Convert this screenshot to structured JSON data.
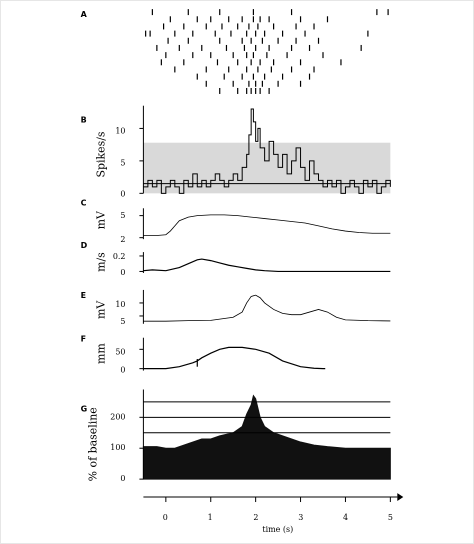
{
  "chart_data": [
    {
      "panel": "A",
      "type": "raster",
      "trials": [
        [
          -0.3,
          0.5,
          1.2,
          1.95,
          2.8,
          4.7,
          4.95
        ],
        [
          0.1,
          0.7,
          1.0,
          1.4,
          1.7,
          1.95,
          2.1,
          2.3,
          3.0,
          3.6
        ],
        [
          -0.05,
          0.4,
          0.9,
          1.25,
          1.6,
          1.85,
          2.05,
          2.4,
          2.9,
          3.3
        ],
        [
          -0.45,
          -0.35,
          0.2,
          0.6,
          1.1,
          1.45,
          1.8,
          2.0,
          2.2,
          2.6,
          3.1,
          4.5
        ],
        [
          0.05,
          0.5,
          1.2,
          1.7,
          1.9,
          2.15,
          2.5,
          2.9,
          3.4
        ],
        [
          -0.2,
          0.3,
          0.8,
          1.35,
          1.75,
          2.0,
          2.3,
          2.8,
          3.2,
          4.35
        ],
        [
          0.0,
          0.6,
          1.0,
          1.5,
          1.8,
          1.95,
          2.25,
          2.7,
          3.5
        ],
        [
          -0.1,
          0.4,
          1.15,
          1.6,
          1.9,
          2.1,
          2.4,
          3.0,
          3.9
        ],
        [
          0.2,
          0.9,
          1.4,
          1.8,
          2.05,
          2.35,
          2.8,
          3.3
        ],
        [
          0.7,
          1.3,
          1.7,
          1.95,
          2.2,
          2.6,
          3.2
        ],
        [
          0.9,
          1.5,
          1.85,
          2.0,
          2.15,
          2.5,
          3.0
        ],
        [
          1.2,
          1.6,
          1.8,
          1.9,
          2.0,
          2.1,
          2.3
        ]
      ],
      "xlim": [
        -0.5,
        5
      ]
    },
    {
      "panel": "B",
      "type": "line",
      "ylabel": "Spikes/s",
      "yticks": [
        0,
        5,
        10
      ],
      "ylim": [
        0,
        13.5
      ],
      "band": [
        0,
        7.8
      ],
      "hline": 1.5,
      "x": [
        -0.5,
        -0.4,
        -0.3,
        -0.2,
        -0.1,
        0,
        0.1,
        0.2,
        0.3,
        0.4,
        0.5,
        0.6,
        0.7,
        0.8,
        0.9,
        1,
        1.1,
        1.2,
        1.3,
        1.4,
        1.5,
        1.6,
        1.7,
        1.8,
        1.85,
        1.9,
        1.95,
        2,
        2.05,
        2.1,
        2.2,
        2.3,
        2.4,
        2.5,
        2.6,
        2.7,
        2.8,
        2.9,
        3,
        3.1,
        3.2,
        3.3,
        3.4,
        3.5,
        3.6,
        3.7,
        3.8,
        3.9,
        4,
        4.1,
        4.2,
        4.3,
        4.4,
        4.5,
        4.6,
        4.7,
        4.8,
        4.9,
        5
      ],
      "y": [
        1,
        2,
        1,
        2,
        0,
        1,
        2,
        1,
        0,
        2,
        1,
        3,
        1,
        2,
        1,
        2,
        3,
        2,
        1,
        2,
        3,
        2,
        4,
        6,
        9,
        13,
        11,
        8,
        10,
        7,
        5,
        8,
        6,
        4,
        6,
        3,
        5,
        7,
        4,
        2,
        5,
        3,
        2,
        1,
        2,
        1,
        2,
        0,
        1,
        2,
        1,
        0,
        2,
        1,
        2,
        0,
        1,
        2,
        1
      ]
    },
    {
      "panel": "C",
      "type": "line",
      "ylabel": "mV",
      "yticks": [
        2,
        5
      ],
      "ylim": [
        1.8,
        6
      ],
      "x": [
        -0.5,
        -0.2,
        0,
        0.1,
        0.2,
        0.3,
        0.5,
        0.7,
        1,
        1.3,
        1.6,
        1.9,
        2.2,
        2.5,
        2.8,
        3.1,
        3.4,
        3.7,
        4,
        4.3,
        4.6,
        5
      ],
      "y": [
        2.3,
        2.3,
        2.4,
        2.9,
        3.6,
        4.3,
        4.8,
        5.0,
        5.1,
        5.1,
        5.0,
        4.8,
        4.6,
        4.4,
        4.2,
        4.0,
        3.6,
        3.2,
        2.9,
        2.7,
        2.6,
        2.6
      ]
    },
    {
      "panel": "D",
      "type": "line",
      "ylabel": "m/s",
      "yticks": [
        0,
        0.2
      ],
      "ylim": [
        -0.02,
        0.25
      ],
      "x": [
        -0.5,
        -0.3,
        0,
        0.3,
        0.5,
        0.7,
        0.8,
        1,
        1.2,
        1.4,
        1.6,
        1.8,
        2,
        2.2,
        2.5,
        3,
        4,
        5
      ],
      "y": [
        0.01,
        0.02,
        0.01,
        0.05,
        0.1,
        0.15,
        0.16,
        0.14,
        0.11,
        0.08,
        0.06,
        0.04,
        0.02,
        0.01,
        0,
        0,
        0,
        0
      ]
    },
    {
      "panel": "E",
      "type": "line",
      "ylabel": "mV",
      "yticks": [
        5,
        10
      ],
      "ylim": [
        2,
        15
      ],
      "x": [
        -0.5,
        0,
        0.5,
        1,
        1.5,
        1.7,
        1.8,
        1.9,
        2,
        2.1,
        2.2,
        2.4,
        2.6,
        2.8,
        3,
        3.2,
        3.4,
        3.6,
        3.8,
        4,
        4.5,
        5
      ],
      "y": [
        3,
        3,
        3.2,
        3.3,
        4.5,
        6.5,
        10,
        12.5,
        13,
        12,
        10,
        7.5,
        6,
        5.5,
        5.5,
        6.5,
        7.5,
        6.5,
        4.5,
        3.5,
        3.2,
        3.1
      ]
    },
    {
      "panel": "F",
      "type": "line",
      "ylabel": "mm",
      "yticks": [
        0,
        50
      ],
      "ylim": [
        -5,
        80
      ],
      "x": [
        -0.5,
        0,
        0.3,
        0.6,
        0.7,
        0.8,
        1,
        1.2,
        1.4,
        1.7,
        2,
        2.3,
        2.6,
        3,
        3.3,
        3.5,
        3.55
      ],
      "y": [
        0,
        0,
        5,
        15,
        20,
        28,
        40,
        50,
        55,
        55,
        50,
        40,
        20,
        5,
        1,
        0,
        0
      ]
    },
    {
      "panel": "G",
      "type": "area",
      "ylabel": "% of baseline",
      "yticks": [
        0,
        100,
        200
      ],
      "ylim": [
        0,
        290
      ],
      "hlines": [
        150,
        200,
        250
      ],
      "x": [
        -0.5,
        -0.2,
        0,
        0.2,
        0.5,
        0.8,
        1,
        1.2,
        1.5,
        1.7,
        1.8,
        1.9,
        1.95,
        2,
        2.05,
        2.1,
        2.2,
        2.4,
        2.6,
        2.8,
        3,
        3.3,
        3.6,
        4,
        4.5,
        5
      ],
      "y": [
        105,
        105,
        100,
        100,
        115,
        130,
        130,
        140,
        150,
        170,
        210,
        240,
        270,
        260,
        230,
        200,
        170,
        150,
        140,
        130,
        120,
        110,
        105,
        100,
        100,
        100
      ]
    },
    {
      "panel": "time-axis",
      "type": "axis",
      "xlabel": "time (s)",
      "xticks": [
        0,
        1,
        2,
        3,
        4,
        5
      ],
      "xlim": [
        -0.5,
        5
      ]
    }
  ],
  "labels": {
    "A": "A",
    "B": "B",
    "C": "C",
    "D": "D",
    "E": "E",
    "F": "F",
    "G": "G"
  },
  "axes": {
    "B": {
      "ylabel": "Spikes/s",
      "ticks": [
        "0",
        "5",
        "10"
      ]
    },
    "C": {
      "ylabel": "mV",
      "ticks": [
        "2",
        "5"
      ]
    },
    "D": {
      "ylabel": "m/s",
      "ticks": [
        "0",
        "0.2"
      ]
    },
    "E": {
      "ylabel": "mV",
      "ticks": [
        "5",
        "10"
      ]
    },
    "F": {
      "ylabel": "mm",
      "ticks": [
        "0",
        "50"
      ]
    },
    "G": {
      "ylabel": "% of baseline",
      "ticks": [
        "0",
        "100",
        "200"
      ]
    },
    "time": {
      "xlabel": "time (s)",
      "ticks": [
        "0",
        "1",
        "2",
        "3",
        "4",
        "5"
      ]
    }
  }
}
